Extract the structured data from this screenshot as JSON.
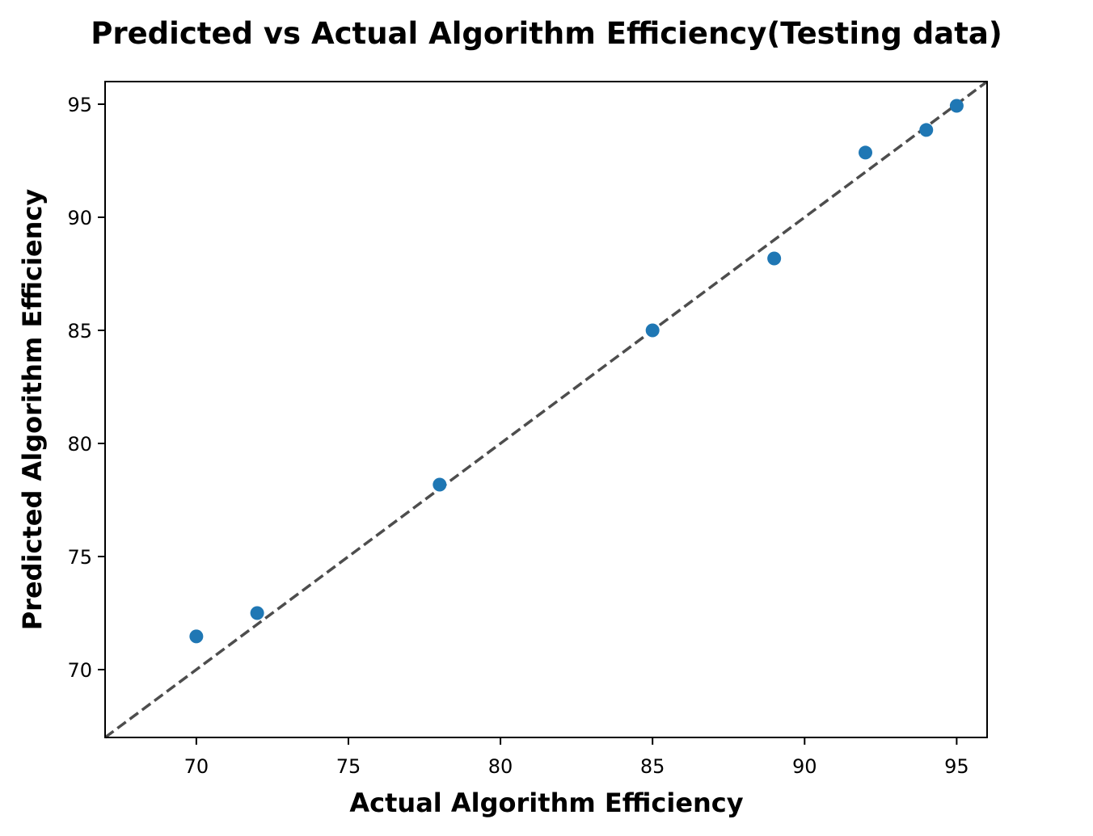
{
  "chart_data": {
    "type": "scatter",
    "title": "Predicted vs Actual Algorithm Efficiency(Testing data)",
    "xlabel": "Actual Algorithm Efficiency",
    "ylabel": "Predicted Algorithm Efficiency",
    "xlim": [
      67,
      96
    ],
    "ylim": [
      67,
      96
    ],
    "xticks": [
      70,
      75,
      80,
      85,
      90,
      95
    ],
    "yticks": [
      70,
      75,
      80,
      85,
      90,
      95
    ],
    "grid": false,
    "series": [
      {
        "name": "Testing data",
        "color": "#1f77b4",
        "points": [
          {
            "x": 70,
            "y": 71.47
          },
          {
            "x": 72,
            "y": 72.5
          },
          {
            "x": 78,
            "y": 78.18
          },
          {
            "x": 85,
            "y": 85.0
          },
          {
            "x": 89,
            "y": 88.18
          },
          {
            "x": 92,
            "y": 92.86
          },
          {
            "x": 94,
            "y": 93.86
          },
          {
            "x": 95,
            "y": 94.93
          }
        ]
      }
    ],
    "reference_line": {
      "type": "y=x",
      "style": "dashed",
      "color": "#4d4d4d"
    }
  }
}
